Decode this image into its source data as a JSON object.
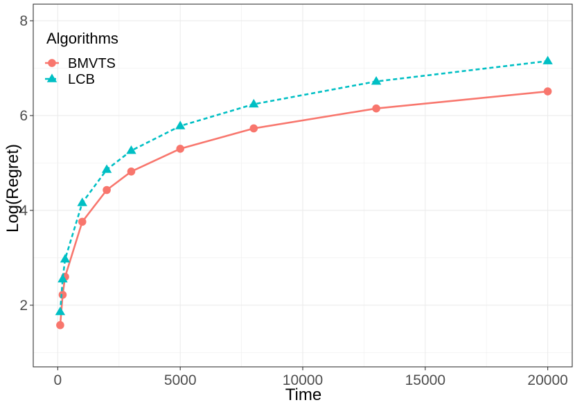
{
  "chart_data": {
    "type": "line",
    "title": "",
    "xlabel": "Time",
    "ylabel": "Log(Regret)",
    "xlim": [
      -1000,
      21000
    ],
    "ylim": [
      0.7,
      8.35
    ],
    "x_ticks": [
      0,
      5000,
      10000,
      15000,
      20000
    ],
    "x_tick_labels": [
      "0",
      "5000",
      "10000",
      "15000",
      "20000"
    ],
    "y_ticks": [
      2,
      4,
      6,
      8
    ],
    "y_tick_labels": [
      "2",
      "4",
      "6",
      "8"
    ],
    "grid": true,
    "legend": {
      "title": "Algorithms",
      "position": "top-left"
    },
    "series": [
      {
        "name": "BMVTS",
        "color": "#f8766d",
        "line_style": "solid",
        "marker": "circle",
        "x": [
          100,
          200,
          300,
          1000,
          2000,
          3000,
          5000,
          8000,
          13000,
          20000
        ],
        "y": [
          1.58,
          2.22,
          2.6,
          3.76,
          4.43,
          4.82,
          5.3,
          5.73,
          6.15,
          6.51
        ]
      },
      {
        "name": "LCB",
        "color": "#00bfc4",
        "line_style": "dashed",
        "marker": "triangle",
        "x": [
          100,
          200,
          300,
          1000,
          2000,
          3000,
          5000,
          8000,
          13000,
          20000
        ],
        "y": [
          1.86,
          2.55,
          2.97,
          4.16,
          4.86,
          5.26,
          5.78,
          6.24,
          6.72,
          7.15
        ]
      }
    ]
  }
}
